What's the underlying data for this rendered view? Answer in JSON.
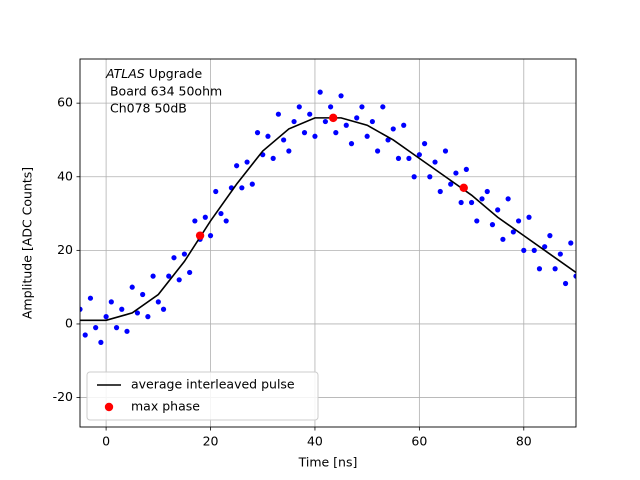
{
  "chart_data": {
    "type": "scatter",
    "xlabel": "Time [ns]",
    "ylabel": "Amplitude [ADC Counts]",
    "annotation": {
      "italic": "ATLAS",
      "rest": " Upgrade",
      "lines": [
        " Board 634 50ohm",
        " Ch078 50dB"
      ]
    },
    "xlim": [
      -5,
      90
    ],
    "ylim": [
      -28,
      72
    ],
    "xticks": [
      0,
      20,
      40,
      60,
      80
    ],
    "yticks": [
      -20,
      0,
      20,
      40,
      60
    ],
    "grid": true,
    "legend": "lower left",
    "scatter": {
      "color": "#0000ff",
      "x": [
        -5,
        -4,
        -3,
        -2,
        -1,
        0,
        1,
        2,
        3,
        4,
        5,
        6,
        7,
        8,
        9,
        10,
        11,
        12,
        13,
        14,
        15,
        16,
        17,
        18,
        19,
        20,
        21,
        22,
        23,
        24,
        25,
        26,
        27,
        28,
        29,
        30,
        31,
        32,
        33,
        34,
        35,
        36,
        37,
        38,
        39,
        40,
        41,
        42,
        43,
        44,
        45,
        46,
        47,
        48,
        49,
        50,
        51,
        52,
        53,
        54,
        55,
        56,
        57,
        58,
        59,
        60,
        61,
        62,
        63,
        64,
        65,
        66,
        67,
        68,
        69,
        70,
        71,
        72,
        73,
        74,
        75,
        76,
        77,
        78,
        79,
        80,
        81,
        82,
        83,
        84,
        85,
        86,
        87,
        88,
        89,
        90
      ],
      "values": [
        4,
        -3,
        7,
        -1,
        -5,
        2,
        6,
        -1,
        4,
        -2,
        10,
        3,
        8,
        2,
        13,
        6,
        4,
        13,
        18,
        12,
        19,
        14,
        28,
        23,
        29,
        24,
        36,
        30,
        28,
        37,
        43,
        37,
        44,
        38,
        52,
        46,
        51,
        45,
        57,
        50,
        47,
        55,
        59,
        52,
        57,
        51,
        63,
        55,
        59,
        52,
        62,
        54,
        49,
        56,
        59,
        51,
        55,
        47,
        59,
        50,
        53,
        45,
        54,
        45,
        40,
        46,
        49,
        40,
        44,
        36,
        47,
        38,
        41,
        33,
        42,
        33,
        28,
        34,
        36,
        27,
        31,
        23,
        34,
        25,
        28,
        20,
        29,
        20,
        15,
        21,
        24,
        15,
        19,
        11,
        22,
        13
      ]
    },
    "line": {
      "name": "average interleaved pulse",
      "color": "#000000",
      "x": [
        -5,
        0,
        5,
        10,
        15,
        20,
        25,
        30,
        35,
        40,
        45,
        50,
        55,
        60,
        65,
        70,
        75,
        80,
        85,
        90
      ],
      "values": [
        1,
        1,
        3,
        8,
        17,
        28,
        38,
        47,
        53,
        56,
        56,
        54,
        50,
        45,
        40,
        35,
        29,
        24,
        19,
        14
      ]
    },
    "max_phase": {
      "name": "max phase",
      "color": "#ff0000",
      "x": [
        18,
        43.5,
        68.5
      ],
      "values": [
        24,
        56,
        37
      ]
    }
  }
}
